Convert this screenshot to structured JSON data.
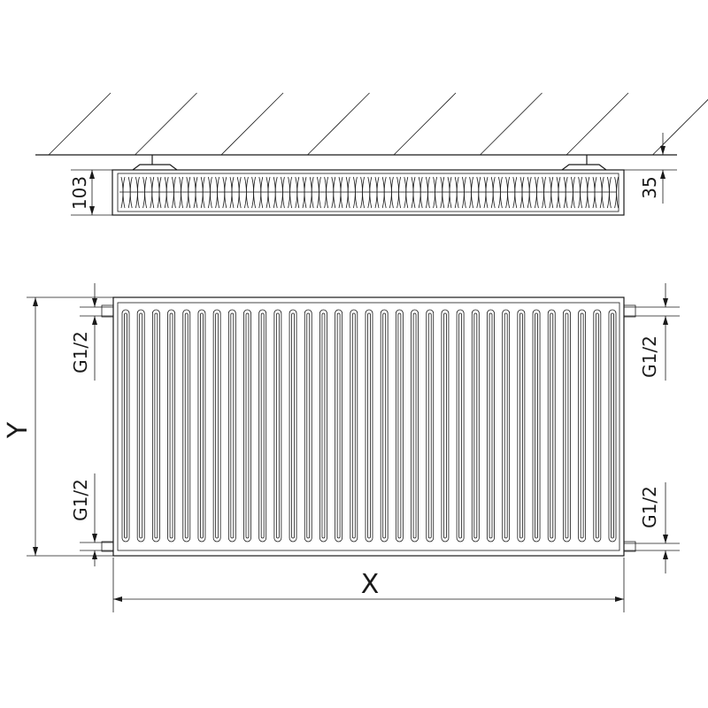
{
  "side_view": {
    "depth_label": "103",
    "wall_gap_label": "35"
  },
  "front_view": {
    "height_label": "Y",
    "width_label": "X",
    "connections": {
      "top_left": "G1/2",
      "bottom_left": "G1/2",
      "top_right": "G1/2",
      "bottom_right": "G1/2"
    }
  },
  "colors": {
    "line": "#1a1a1a",
    "background": "#ffffff"
  }
}
